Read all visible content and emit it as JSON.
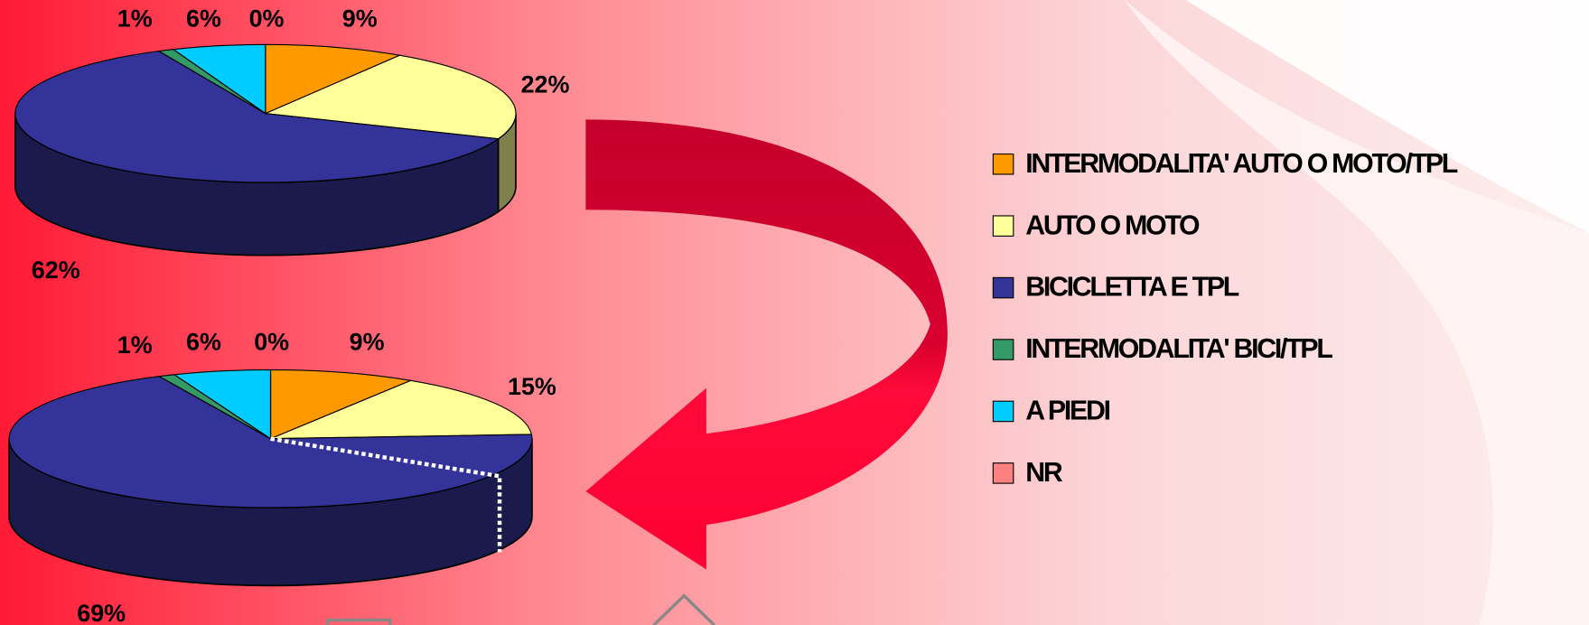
{
  "chart_data": [
    {
      "type": "pie3d",
      "categories": [
        "INTERMODALITA' AUTO O MOTO/TPL",
        "AUTO O MOTO",
        "BICICLETTA E TPL",
        "INTERMODALITA' BICI/TPL",
        "A PIEDI",
        "NR"
      ],
      "colors": [
        "#ff9900",
        "#ffff99",
        "#333399",
        "#339966",
        "#00ccff",
        "#ff8080"
      ],
      "values": [
        9,
        22,
        62,
        1,
        6,
        0
      ],
      "value_labels": [
        "9%",
        "22%",
        "62%",
        "1%",
        "6%",
        "0%"
      ]
    },
    {
      "type": "pie3d",
      "values": [
        9,
        15,
        69,
        1,
        6,
        0
      ],
      "value_labels": [
        "9%",
        "15%",
        "69%",
        "1%",
        "6%",
        "0%"
      ]
    }
  ]
}
